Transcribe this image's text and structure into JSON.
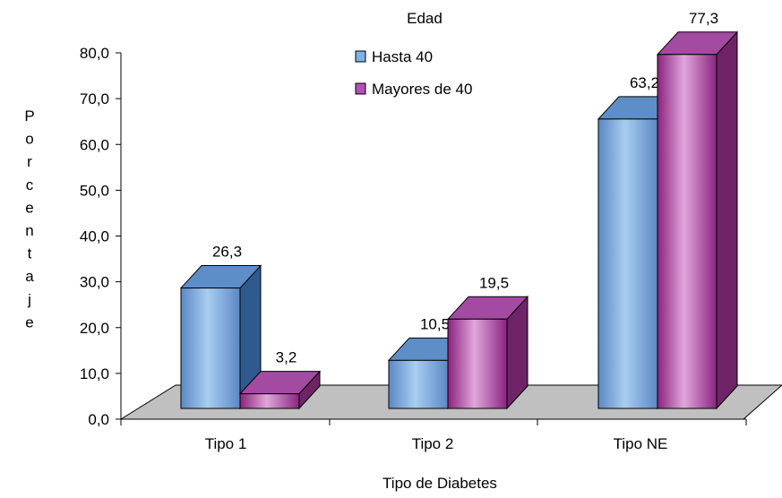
{
  "chart_data": {
    "type": "bar",
    "title": "",
    "categories": [
      "Tipo 1",
      "Tipo 2",
      "Tipo NE"
    ],
    "series": [
      {
        "name": "Hasta 40",
        "values": [
          26.3,
          10.5,
          63.2
        ],
        "labels": [
          "26,3",
          "10,5",
          "63,2"
        ],
        "color": "#7fb2e6"
      },
      {
        "name": "Mayores de 40",
        "values": [
          3.2,
          19.5,
          77.3
        ],
        "labels": [
          "3,2",
          "19,5",
          "77,3"
        ],
        "color": "#b34fb3"
      }
    ],
    "legend_title": "Edad",
    "legend_position": "top-right",
    "xlabel": "Tipo de Diabetes",
    "ylabel": "Porcentaje",
    "ylim": [
      0,
      80
    ],
    "yticks": [
      0,
      10,
      20,
      30,
      40,
      50,
      60,
      70,
      80
    ],
    "ytick_labels": [
      "0,0",
      "10,0",
      "20,0",
      "30,0",
      "40,0",
      "50,0",
      "60,0",
      "70,0",
      "80,0"
    ],
    "floor_color": "#c0c0c0",
    "grid": false
  }
}
